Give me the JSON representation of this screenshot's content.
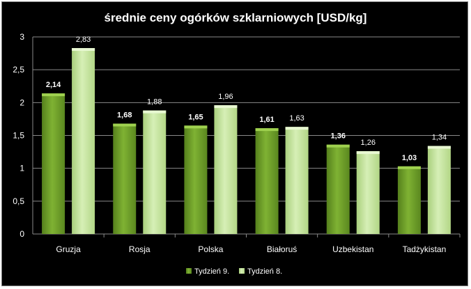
{
  "chart_data": {
    "type": "bar",
    "title": "średnie ceny ogórków szklarniowych [USD/kg]",
    "xlabel": "",
    "ylabel": "",
    "categories": [
      "Gruzja",
      "Rosja",
      "Polska",
      "Białoruś",
      "Uzbekistan",
      "Tadżykistan"
    ],
    "series": [
      {
        "name": "Tydzień 9.",
        "values": [
          2.14,
          1.68,
          1.65,
          1.61,
          1.36,
          1.03
        ],
        "labels": [
          "2,14",
          "1,68",
          "1,65",
          "1,61",
          "1,36",
          "1,03"
        ],
        "color": "#6f9e2a"
      },
      {
        "name": "Tydzień 8.",
        "values": [
          2.83,
          1.88,
          1.96,
          1.63,
          1.26,
          1.34
        ],
        "labels": [
          "2,83",
          "1,88",
          "1,96",
          "1,63",
          "1,26",
          "1,34"
        ],
        "color": "#c2e39a"
      }
    ],
    "ylim": [
      0,
      3
    ],
    "yticks": [
      0,
      0.5,
      1,
      1.5,
      2,
      2.5,
      3
    ],
    "ytick_labels": [
      "0",
      "0,5",
      "1",
      "1,5",
      "2",
      "2,5",
      "3"
    ],
    "grid": true,
    "legend_position": "bottom",
    "background": "#000000"
  }
}
